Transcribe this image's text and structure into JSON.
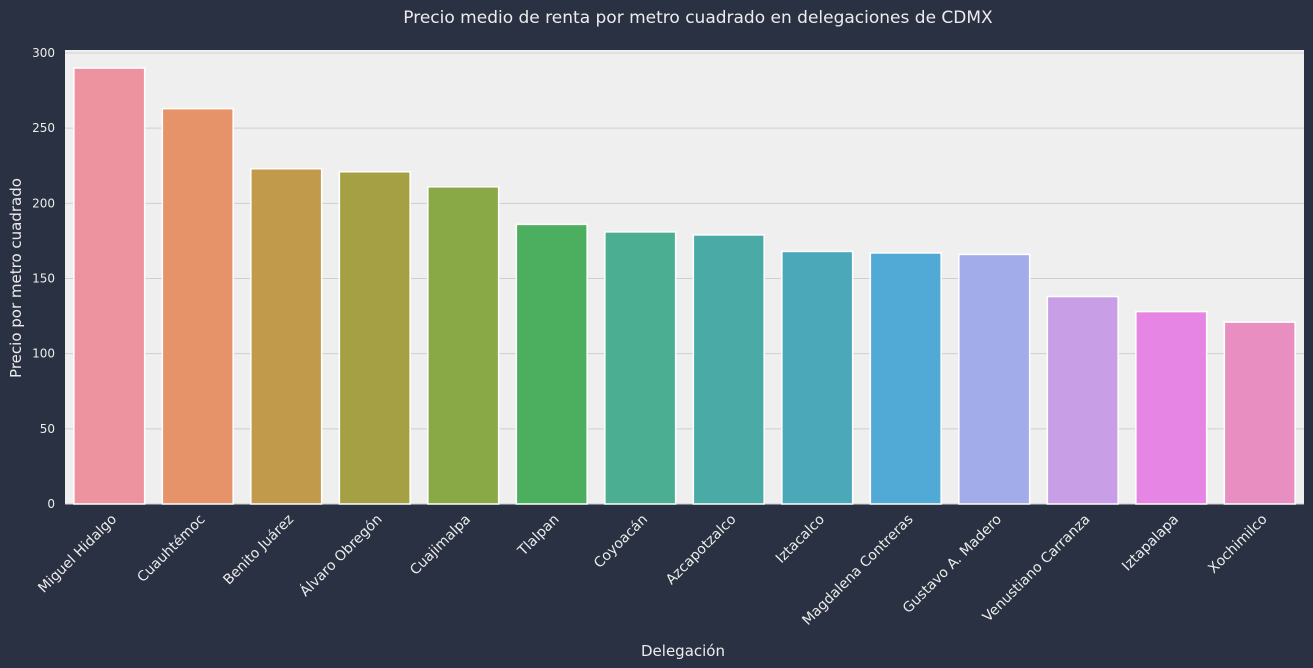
{
  "chart_data": {
    "type": "bar",
    "title": "Precio medio de renta por metro cuadrado en delegaciones de CDMX",
    "xlabel": "Delegación",
    "ylabel": "Precio por metro cuadrado",
    "ylim": [
      0,
      302
    ],
    "yticks": [
      0,
      50,
      100,
      150,
      200,
      250,
      300
    ],
    "grid": true,
    "categories": [
      "Miguel Hidalgo",
      "Cuauhtémoc",
      "Benito Juárez",
      "Álvaro Obregón",
      "Cuajimalpa",
      "Tlalpan",
      "Coyoacán",
      "Azcapotzalco",
      "Iztacalco",
      "Magdalena Contreras",
      "Gustavo A. Madero",
      "Venustiano Carranza",
      "Iztapalapa",
      "Xochimilco"
    ],
    "values": [
      290,
      263,
      223,
      221,
      211,
      186,
      181,
      179,
      168,
      167,
      166,
      138,
      128,
      121
    ],
    "colors": [
      "#ed939f",
      "#e6936a",
      "#c19a4b",
      "#a5a043",
      "#89a947",
      "#4caf60",
      "#4bae92",
      "#4aaaa5",
      "#4ba8b8",
      "#51a9d6",
      "#a2acea",
      "#c89ee7",
      "#e785e4",
      "#e88ec0"
    ]
  }
}
